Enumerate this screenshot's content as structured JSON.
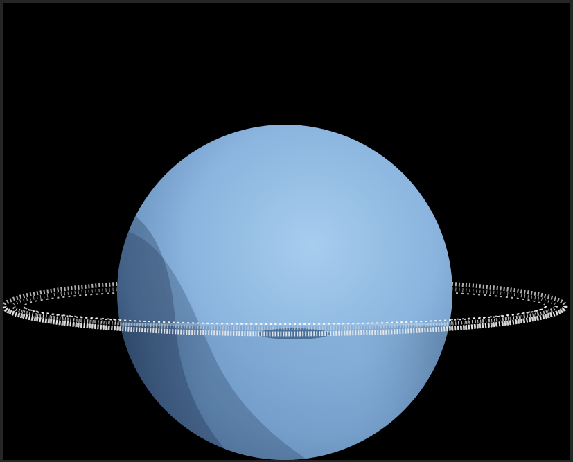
{
  "image": {
    "subject": "",
    "colors": {
      "frame": "#262626",
      "space": "#000000",
      "planet_light": "#9cc3e6",
      "planet_mid": "#7fa6cc",
      "planet_dark": "#3f5f85",
      "ring": "#d8d8d8"
    }
  }
}
